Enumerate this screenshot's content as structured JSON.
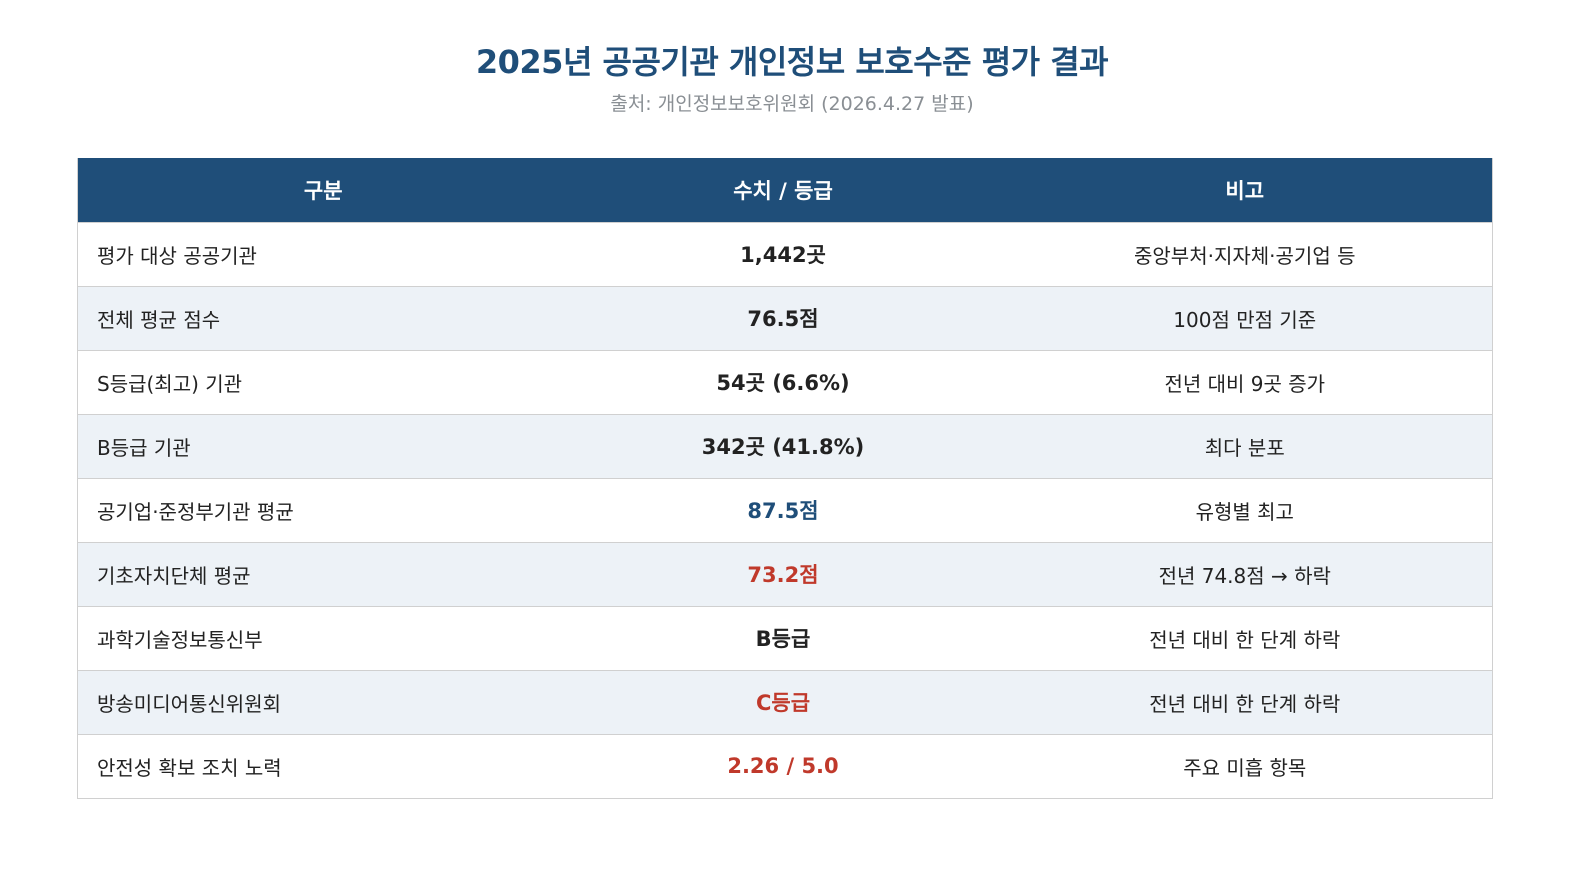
{
  "header": {
    "title": "2025년 공공기관 개인정보 보호수준 평가 결과",
    "source": "출처: 개인정보보호위원회 (2026.4.27 발표)"
  },
  "colors": {
    "title": "#1f4e79",
    "table_header_bg": "#1f4e79",
    "row_alt_bg": "#edf2f7",
    "highlight_blue": "#1f4e79",
    "highlight_red": "#c0392b",
    "subtitle": "#8a8f94"
  },
  "table": {
    "columns": [
      "구분",
      "수치 / 등급",
      "비고"
    ],
    "rows": [
      {
        "label": "평가 대상 공공기관",
        "value": "1,442곳",
        "note": "중앙부처·지자체·공기업 등",
        "tone": "normal"
      },
      {
        "label": "전체 평균 점수",
        "value": "76.5점",
        "note": "100점 만점 기준",
        "tone": "normal"
      },
      {
        "label": "S등급(최고) 기관",
        "value": "54곳 (6.6%)",
        "note": "전년 대비 9곳 증가",
        "tone": "normal"
      },
      {
        "label": "B등급 기관",
        "value": "342곳 (41.8%)",
        "note": "최다 분포",
        "tone": "normal"
      },
      {
        "label": "공기업·준정부기관 평균",
        "value": "87.5점",
        "note": "유형별 최고",
        "tone": "blue"
      },
      {
        "label": "기초자치단체 평균",
        "value": "73.2점",
        "note": "전년 74.8점 → 하락",
        "tone": "red"
      },
      {
        "label": "과학기술정보통신부",
        "value": "B등급",
        "note": "전년 대비 한 단계 하락",
        "tone": "normal"
      },
      {
        "label": "방송미디어통신위원회",
        "value": "C등급",
        "note": "전년 대비 한 단계 하락",
        "tone": "red"
      },
      {
        "label": "안전성 확보 조치 노력",
        "value": "2.26 / 5.0",
        "note": "주요 미흡 항목",
        "tone": "red"
      }
    ]
  }
}
